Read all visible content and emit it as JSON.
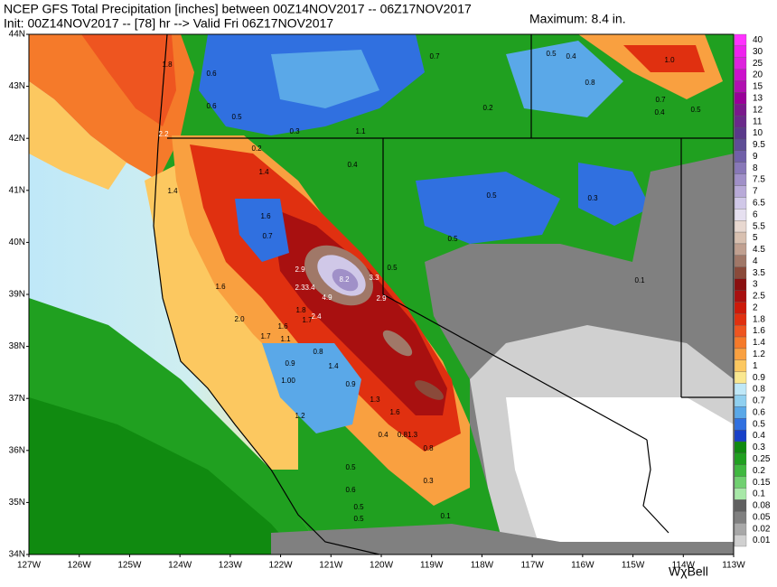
{
  "header": {
    "title": "NCEP GFS Total Precipitation [inches] between 00Z14NOV2017 -- 06Z17NOV2017",
    "init": "Init: 00Z14NOV2017 -- [78] hr --> Valid Fri 06Z17NOV2017",
    "maximum": "Maximum: 8.4 in."
  },
  "latitude_labels": [
    "44N",
    "43N",
    "42N",
    "41N",
    "40N",
    "39N",
    "38N",
    "37N",
    "36N",
    "35N",
    "34N"
  ],
  "longitude_labels": [
    "127W",
    "126W",
    "125W",
    "124W",
    "123W",
    "122W",
    "121W",
    "120W",
    "119W",
    "118W",
    "117W",
    "116W",
    "115W",
    "114W",
    "113W"
  ],
  "colorbar": {
    "labels": [
      "40",
      "30",
      "25",
      "20",
      "15",
      "13",
      "12",
      "11",
      "10",
      "9.5",
      "9",
      "8",
      "7.5",
      "7",
      "6.5",
      "6",
      "5.5",
      "5",
      "4.5",
      "4",
      "3.5",
      "3",
      "2.5",
      "2",
      "1.8",
      "1.6",
      "1.4",
      "1.2",
      "1",
      "0.9",
      "0.8",
      "0.7",
      "0.6",
      "0.5",
      "0.4",
      "0.3",
      "0.25",
      "0.2",
      "0.15",
      "0.1",
      "0.08",
      "0.05",
      "0.02",
      "0.01"
    ],
    "colors": [
      "#ff33ff",
      "#ee22ee",
      "#dd22dd",
      "#cc11cc",
      "#b010b0",
      "#990099",
      "#7a1a8c",
      "#6a2a8a",
      "#5a3a8a",
      "#5e4e96",
      "#7060a8",
      "#8878b8",
      "#a090c8",
      "#b8aad8",
      "#d0c8e8",
      "#e6e0f0",
      "#e8d8d0",
      "#d8c0b0",
      "#c0a090",
      "#a07868",
      "#8a4a3a",
      "#8a1010",
      "#a81010",
      "#cc1a0a",
      "#e03010",
      "#ee5520",
      "#f57a2a",
      "#f9a040",
      "#fcc860",
      "#fae890",
      "#bfe8f8",
      "#90d0f0",
      "#5aa8e8",
      "#3070e0",
      "#1840c8",
      "#108a10",
      "#20a020",
      "#40b840",
      "#70d070",
      "#a8e8a8",
      "#606060",
      "#808080",
      "#a8a8a8",
      "#d0d0d0"
    ]
  },
  "map_labels": [
    "0.6",
    "0.6",
    "0.5",
    "0.3",
    "0.2",
    "1.4",
    "1.6",
    "0.7",
    "0.4",
    "1.1",
    "0.7",
    "0.2",
    "0.5",
    "0.4",
    "0.8",
    "1.0",
    "0.7",
    "0.4",
    "0.5",
    "0.5",
    "0.3",
    "0.5",
    "0.1",
    "2.2",
    "1.4",
    "1.8",
    "2.9",
    "8.2",
    "3.3",
    "0.5",
    "2.9",
    "2.3",
    "3.4",
    "4.9",
    "1.6",
    "1.8",
    "1.7",
    "2.4",
    "2.0",
    "1.6",
    "1.7",
    "1.1",
    "0.8",
    "1.4",
    "0.9",
    "1.00",
    "0.9",
    "1.3",
    "1.6",
    "1.2",
    "0.4",
    "0.81.3",
    "0.8",
    "0.5",
    "0.3",
    "0.6",
    "0.5",
    "0.5",
    "0.1"
  ],
  "logo": "WχBell"
}
